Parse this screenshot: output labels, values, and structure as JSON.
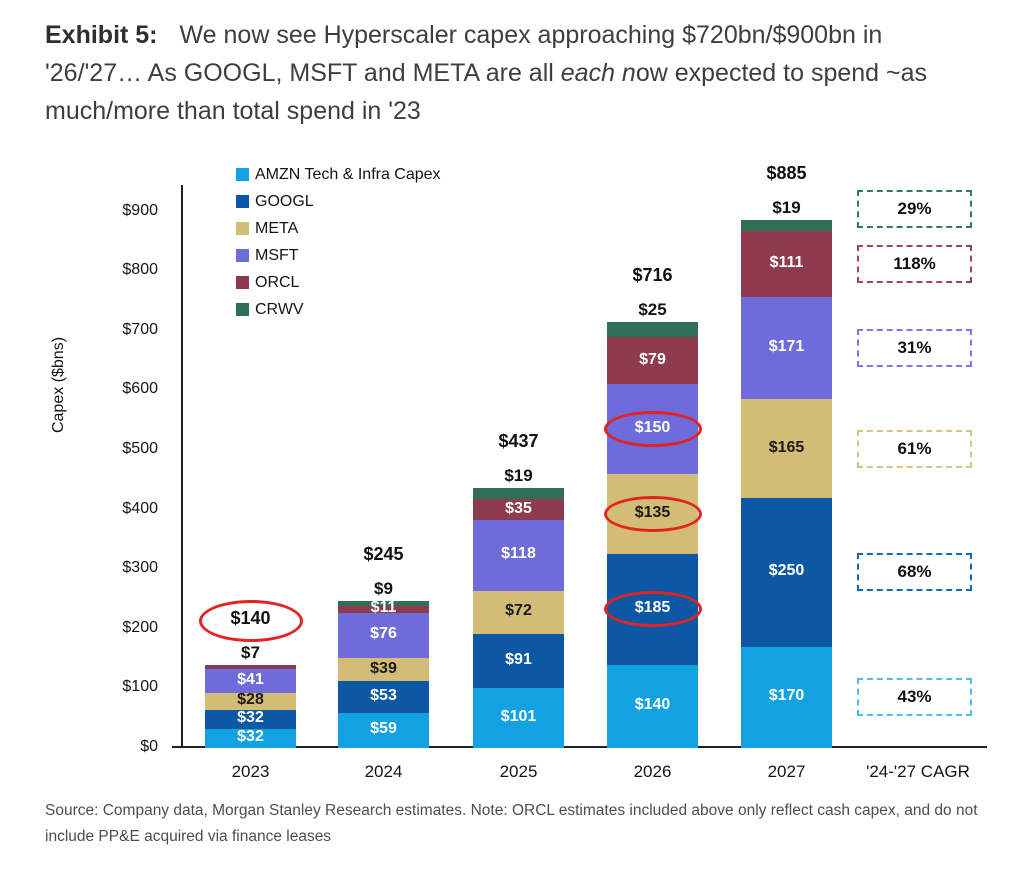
{
  "title": {
    "exhibit_label": "Exhibit 5:",
    "before_italic": "We now see Hyperscaler capex approaching $720bn/$900bn in '26/'27… As GOOGL, MSFT and META are all ",
    "italic": "each n",
    "after_italic": "ow expected to spend ~as much/more than total spend in '23"
  },
  "source_note": "Source: Company data, Morgan Stanley Research estimates. Note: ORCL estimates included above only reflect cash capex, and do not include PP&E acquired via finance leases",
  "chart_data": {
    "type": "bar",
    "subtype": "stacked",
    "ylabel": "Capex ($bns)",
    "ylim": [
      0,
      900
    ],
    "ytick_step": 100,
    "ytick_prefix": "$",
    "grid": false,
    "legend_position": "top-left-inside",
    "categories": [
      "2023",
      "2024",
      "2025",
      "2026",
      "2027"
    ],
    "cagr_column_label": "'24-'27 CAGR",
    "totals": [
      "$140",
      "$245",
      "$437",
      "$716",
      "$885"
    ],
    "series": [
      {
        "key": "AMZN",
        "name": "AMZN Tech & Infra Capex",
        "color": "#12A2E2",
        "box_color": "#4FBCEC",
        "label_color": "#FFFFFF",
        "values": [
          32,
          59,
          101,
          140,
          170
        ],
        "cagr": "43%"
      },
      {
        "key": "GOOGL",
        "name": "GOOGL",
        "color": "#0C58A4",
        "box_color": "#1668B0",
        "label_color": "#FFFFFF",
        "values": [
          32,
          53,
          91,
          185,
          250
        ],
        "cagr": "68%"
      },
      {
        "key": "META",
        "name": "META",
        "color": "#D2BC76",
        "box_color": "#D8C47E",
        "label_color": "#1A1A1A",
        "values": [
          28,
          39,
          72,
          135,
          165
        ],
        "cagr": "61%"
      },
      {
        "key": "MSFT",
        "name": "MSFT",
        "color": "#6E6CDB",
        "box_color": "#7B79E4",
        "label_color": "#FFFFFF",
        "values": [
          41,
          76,
          118,
          150,
          171
        ],
        "cagr": "31%"
      },
      {
        "key": "ORCL",
        "name": "ORCL",
        "color": "#8E3A4F",
        "box_color": "#9C4459",
        "label_color": "#FFFFFF",
        "values": [
          7,
          11,
          35,
          79,
          111
        ],
        "cagr": "118%"
      },
      {
        "key": "CRWV",
        "name": "CRWV",
        "color": "#2E6F56",
        "box_color": "#2E7D5B",
        "label_color": "#1A1A1A",
        "values": [
          0,
          9,
          19,
          25,
          19
        ],
        "cagr": "29%"
      }
    ],
    "above_bar_labels": [
      {
        "series": "ORCL",
        "category": "2023"
      },
      {
        "series": "CRWV",
        "category": "2024"
      },
      {
        "series": "CRWV",
        "category": "2025"
      },
      {
        "series": "CRWV",
        "category": "2026"
      },
      {
        "series": "CRWV",
        "category": "2027"
      }
    ],
    "circled_segment_labels": [
      {
        "series": "GOOGL",
        "category": "2026"
      },
      {
        "series": "META",
        "category": "2026"
      },
      {
        "series": "MSFT",
        "category": "2026"
      }
    ],
    "circled_totals": [
      "2023"
    ],
    "annotation_color": "#E42320"
  }
}
